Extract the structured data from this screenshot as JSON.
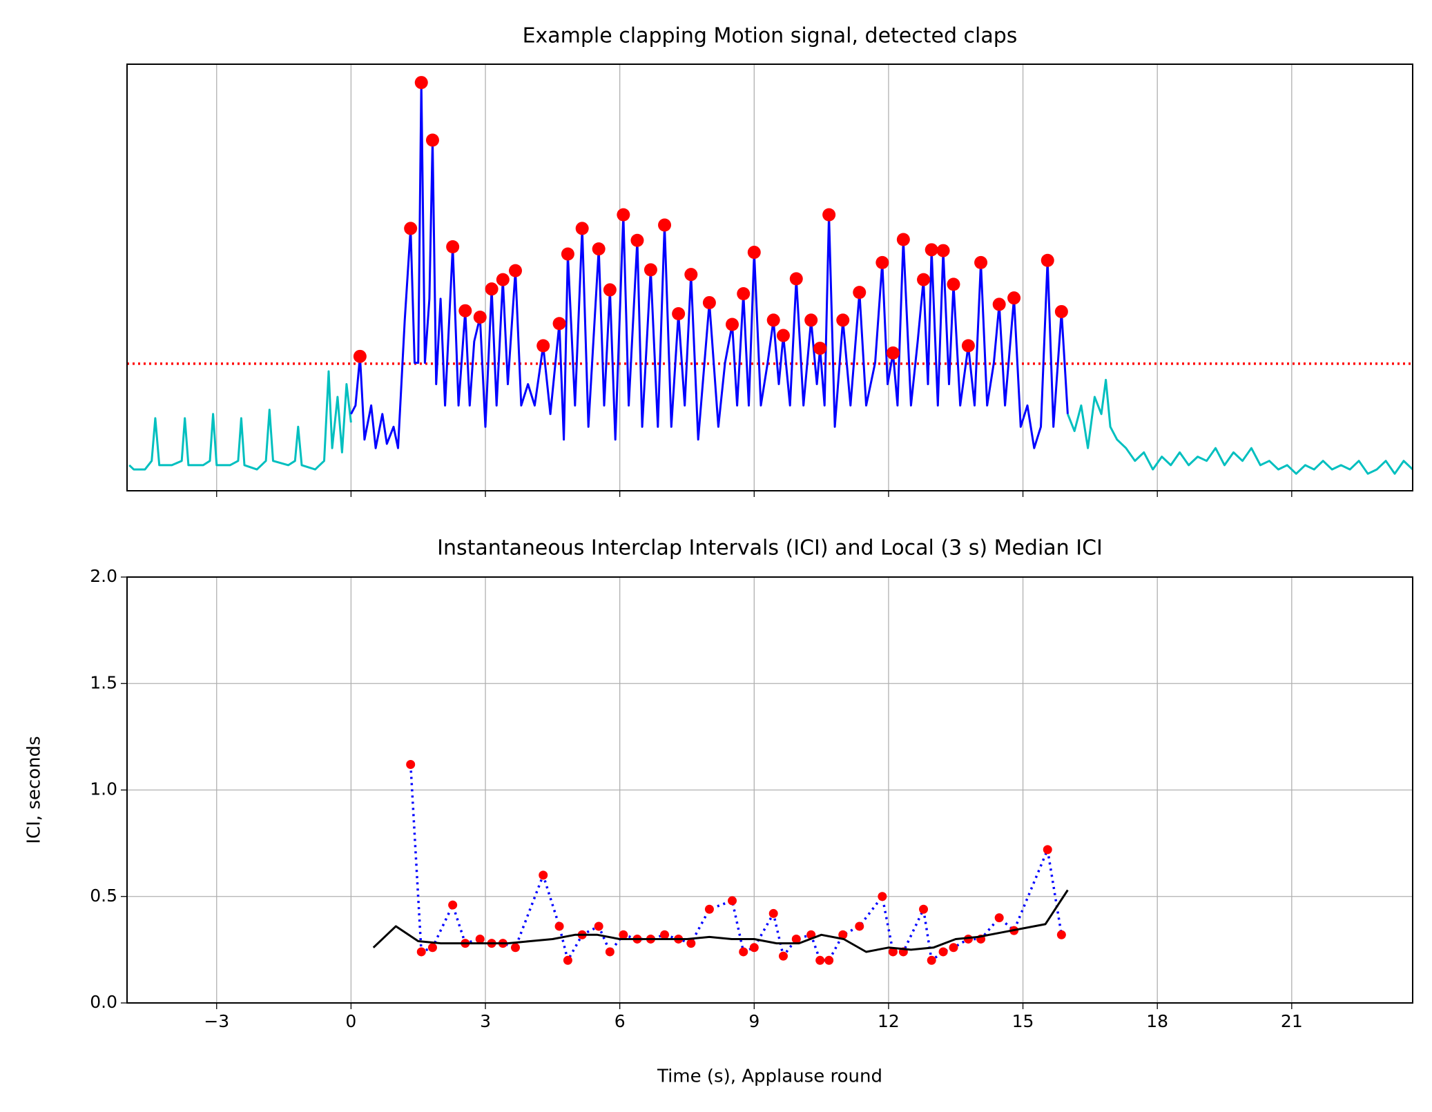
{
  "chart_data": [
    {
      "type": "line",
      "title": "Example clapping Motion signal, detected claps",
      "xlim": [
        -5,
        23.7
      ],
      "ylim": [
        0,
        1
      ],
      "xticks": [
        -3,
        0,
        3,
        6,
        9,
        12,
        15,
        18,
        21
      ],
      "show_xtick_labels": false,
      "grid": true,
      "hline": {
        "value": 0.298,
        "color": "#ff0000"
      },
      "series": [
        {
          "color": "#00bfbf",
          "style": "line",
          "x": [
            -4.95,
            -4.85,
            -4.6,
            -4.45,
            -4.37,
            -4.28,
            -4.0,
            -3.78,
            -3.71,
            -3.63,
            -3.3,
            -3.15,
            -3.08,
            -3.0,
            -2.7,
            -2.52,
            -2.45,
            -2.38,
            -2.1,
            -1.9,
            -1.82,
            -1.74,
            -1.4,
            -1.25,
            -1.18,
            -1.1,
            -0.8,
            -0.6,
            -0.5,
            -0.42,
            -0.3,
            -0.2,
            -0.1,
            0.0
          ],
          "values": [
            0.06,
            0.05,
            0.05,
            0.07,
            0.17,
            0.06,
            0.06,
            0.07,
            0.17,
            0.06,
            0.06,
            0.07,
            0.18,
            0.06,
            0.06,
            0.07,
            0.17,
            0.06,
            0.05,
            0.07,
            0.19,
            0.07,
            0.06,
            0.07,
            0.15,
            0.06,
            0.05,
            0.07,
            0.28,
            0.1,
            0.22,
            0.09,
            0.25,
            0.16
          ]
        },
        {
          "color": "#0000ff",
          "style": "line",
          "x": [
            0.0,
            0.1,
            0.2,
            0.3,
            0.45,
            0.55,
            0.7,
            0.8,
            0.95,
            1.05,
            1.2,
            1.33,
            1.42,
            1.5,
            1.57,
            1.65,
            1.75,
            1.82,
            1.9,
            2.0,
            2.1,
            2.27,
            2.4,
            2.55,
            2.65,
            2.75,
            2.88,
            3.0,
            3.14,
            3.25,
            3.39,
            3.5,
            3.67,
            3.8,
            3.95,
            4.1,
            4.29,
            4.45,
            4.65,
            4.75,
            4.84,
            5.0,
            5.16,
            5.3,
            5.53,
            5.65,
            5.78,
            5.9,
            6.08,
            6.2,
            6.39,
            6.5,
            6.69,
            6.85,
            7.0,
            7.15,
            7.31,
            7.45,
            7.59,
            7.75,
            8.0,
            8.2,
            8.35,
            8.51,
            8.62,
            8.76,
            8.88,
            9.0,
            9.15,
            9.3,
            9.43,
            9.55,
            9.65,
            9.8,
            9.94,
            10.1,
            10.27,
            10.4,
            10.47,
            10.57,
            10.67,
            10.8,
            10.98,
            11.15,
            11.35,
            11.5,
            11.7,
            11.86,
            11.98,
            12.1,
            12.2,
            12.33,
            12.5,
            12.65,
            12.78,
            12.88,
            12.96,
            13.1,
            13.22,
            13.35,
            13.45,
            13.6,
            13.78,
            13.92,
            14.06,
            14.2,
            14.35,
            14.47,
            14.6,
            14.8,
            14.95,
            15.1,
            15.25,
            15.4,
            15.55,
            15.68,
            15.86,
            16.0
          ],
          "values": [
            0.18,
            0.2,
            0.315,
            0.12,
            0.2,
            0.1,
            0.18,
            0.11,
            0.15,
            0.1,
            0.4,
            0.615,
            0.3,
            0.3,
            0.957,
            0.3,
            0.45,
            0.822,
            0.25,
            0.45,
            0.2,
            0.572,
            0.2,
            0.422,
            0.2,
            0.35,
            0.407,
            0.15,
            0.473,
            0.2,
            0.495,
            0.25,
            0.516,
            0.2,
            0.25,
            0.2,
            0.34,
            0.18,
            0.392,
            0.12,
            0.555,
            0.2,
            0.615,
            0.15,
            0.567,
            0.2,
            0.471,
            0.12,
            0.647,
            0.2,
            0.587,
            0.15,
            0.518,
            0.15,
            0.623,
            0.15,
            0.415,
            0.2,
            0.507,
            0.12,
            0.441,
            0.15,
            0.3,
            0.39,
            0.2,
            0.462,
            0.2,
            0.559,
            0.2,
            0.3,
            0.4,
            0.25,
            0.364,
            0.2,
            0.497,
            0.2,
            0.4,
            0.25,
            0.334,
            0.2,
            0.647,
            0.15,
            0.4,
            0.2,
            0.465,
            0.2,
            0.3,
            0.535,
            0.25,
            0.323,
            0.2,
            0.589,
            0.2,
            0.35,
            0.495,
            0.25,
            0.565,
            0.2,
            0.563,
            0.25,
            0.484,
            0.2,
            0.34,
            0.2,
            0.535,
            0.2,
            0.3,
            0.437,
            0.2,
            0.452,
            0.15,
            0.2,
            0.1,
            0.15,
            0.54,
            0.15,
            0.42,
            0.18
          ]
        },
        {
          "color": "#00bfbf",
          "style": "line",
          "x": [
            16.0,
            16.15,
            16.3,
            16.45,
            16.6,
            16.75,
            16.85,
            16.95,
            17.1,
            17.3,
            17.5,
            17.7,
            17.9,
            18.1,
            18.3,
            18.5,
            18.7,
            18.9,
            19.1,
            19.3,
            19.5,
            19.7,
            19.9,
            20.1,
            20.3,
            20.5,
            20.7,
            20.9,
            21.1,
            21.3,
            21.5,
            21.7,
            21.9,
            22.1,
            22.3,
            22.5,
            22.7,
            22.9,
            23.1,
            23.3,
            23.5,
            23.7
          ],
          "values": [
            0.18,
            0.14,
            0.2,
            0.1,
            0.22,
            0.18,
            0.26,
            0.15,
            0.12,
            0.1,
            0.07,
            0.09,
            0.05,
            0.08,
            0.06,
            0.09,
            0.06,
            0.08,
            0.07,
            0.1,
            0.06,
            0.09,
            0.07,
            0.1,
            0.06,
            0.07,
            0.05,
            0.06,
            0.04,
            0.06,
            0.05,
            0.07,
            0.05,
            0.06,
            0.05,
            0.07,
            0.04,
            0.05,
            0.07,
            0.04,
            0.07,
            0.05
          ]
        },
        {
          "marker_color": "#ff0000",
          "style": "markers",
          "marker_size": 13,
          "x": [
            0.2,
            1.33,
            1.57,
            1.82,
            2.27,
            2.55,
            2.88,
            3.14,
            3.39,
            3.67,
            4.29,
            4.65,
            4.84,
            5.16,
            5.53,
            5.78,
            6.08,
            6.39,
            6.69,
            7.0,
            7.31,
            7.59,
            8.0,
            8.51,
            8.76,
            9.0,
            9.43,
            9.65,
            9.94,
            10.27,
            10.47,
            10.67,
            10.98,
            11.35,
            11.86,
            12.1,
            12.33,
            12.78,
            12.96,
            13.22,
            13.45,
            13.78,
            14.06,
            14.47,
            14.8,
            15.55,
            15.86
          ],
          "values": [
            0.315,
            0.615,
            0.957,
            0.822,
            0.572,
            0.422,
            0.407,
            0.473,
            0.495,
            0.516,
            0.34,
            0.392,
            0.555,
            0.615,
            0.567,
            0.471,
            0.647,
            0.587,
            0.518,
            0.623,
            0.415,
            0.507,
            0.441,
            0.39,
            0.462,
            0.559,
            0.4,
            0.364,
            0.497,
            0.4,
            0.334,
            0.647,
            0.4,
            0.465,
            0.535,
            0.323,
            0.589,
            0.495,
            0.565,
            0.563,
            0.484,
            0.34,
            0.535,
            0.437,
            0.452,
            0.54,
            0.42
          ]
        }
      ]
    },
    {
      "type": "line",
      "title": "Instantaneous Interclap Intervals (ICI) and Local (3 s) Median ICI",
      "x_label": "Time (s), Applause round",
      "y_label": "ICI, seconds",
      "xlim": [
        -5,
        23.7
      ],
      "ylim": [
        0,
        2
      ],
      "xticks": [
        {
          "value": -3,
          "label": "−3"
        },
        0,
        3,
        6,
        9,
        12,
        15,
        18,
        21
      ],
      "show_xtick_labels": true,
      "yticks": [
        {
          "value": 0,
          "label": "0.0"
        },
        0.5,
        {
          "value": 1,
          "label": "1.0"
        },
        1.5,
        {
          "value": 2,
          "label": "2.0"
        }
      ],
      "grid": true,
      "series": [
        {
          "color": "#0000ff",
          "marker_color": "#ff0000",
          "style": "dotted-markers",
          "marker_size": 7,
          "x": [
            1.33,
            1.57,
            1.82,
            2.27,
            2.55,
            2.88,
            3.14,
            3.39,
            3.67,
            4.29,
            4.65,
            4.84,
            5.16,
            5.53,
            5.78,
            6.08,
            6.39,
            6.69,
            7.0,
            7.31,
            7.59,
            8.0,
            8.51,
            8.76,
            9.0,
            9.43,
            9.65,
            9.94,
            10.27,
            10.47,
            10.67,
            10.98,
            11.35,
            11.86,
            12.1,
            12.33,
            12.78,
            12.96,
            13.22,
            13.45,
            13.78,
            14.06,
            14.47,
            14.8,
            15.55,
            15.86
          ],
          "values": [
            1.12,
            0.24,
            0.26,
            0.46,
            0.28,
            0.3,
            0.28,
            0.28,
            0.26,
            0.6,
            0.36,
            0.2,
            0.32,
            0.36,
            0.24,
            0.32,
            0.3,
            0.3,
            0.32,
            0.3,
            0.28,
            0.44,
            0.48,
            0.24,
            0.26,
            0.42,
            0.22,
            0.3,
            0.32,
            0.2,
            0.2,
            0.32,
            0.36,
            0.5,
            0.24,
            0.24,
            0.44,
            0.2,
            0.24,
            0.26,
            0.3,
            0.3,
            0.4,
            0.34,
            0.72,
            0.32
          ]
        },
        {
          "color": "#000000",
          "style": "line",
          "x": [
            0.5,
            1.0,
            1.5,
            2.0,
            2.5,
            3.0,
            3.5,
            4.0,
            4.5,
            5.0,
            5.5,
            6.0,
            6.5,
            7.0,
            7.5,
            8.0,
            8.5,
            9.0,
            9.5,
            10.0,
            10.5,
            11.0,
            11.5,
            12.0,
            12.5,
            13.0,
            13.5,
            14.0,
            14.5,
            15.0,
            15.5,
            16.0
          ],
          "values": [
            0.26,
            0.36,
            0.29,
            0.28,
            0.28,
            0.28,
            0.28,
            0.29,
            0.3,
            0.32,
            0.32,
            0.3,
            0.3,
            0.3,
            0.3,
            0.31,
            0.3,
            0.3,
            0.28,
            0.28,
            0.32,
            0.3,
            0.24,
            0.26,
            0.25,
            0.26,
            0.3,
            0.31,
            0.33,
            0.35,
            0.37,
            0.53
          ]
        }
      ]
    }
  ]
}
